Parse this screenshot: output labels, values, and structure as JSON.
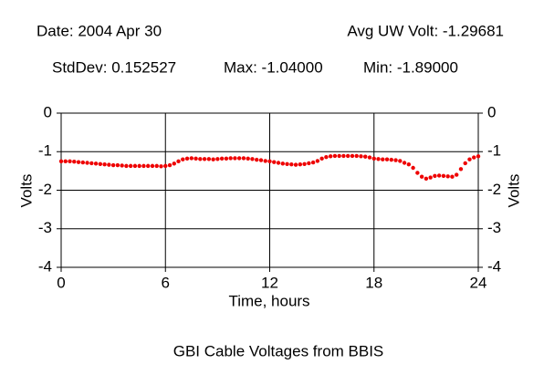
{
  "chart_data": {
    "type": "scatter",
    "title": "GBI Cable Voltages from BBIS",
    "annotations": [
      "Date: 2004 Apr 30",
      "Avg UW Volt: -1.29681",
      "StdDev: 0.152527",
      "Max: -1.04000",
      "Min: -1.89000"
    ],
    "xlabel": "Time, hours",
    "ylabel": "Volts",
    "xlim": [
      0,
      24
    ],
    "xticks": [
      0,
      6,
      12,
      18,
      24
    ],
    "ylim": [
      -4,
      0
    ],
    "yticks": [
      0,
      -1,
      -2,
      -3,
      -4
    ],
    "grid": true,
    "series": [
      {
        "name": "UW Volt",
        "color": "#ee0000",
        "x": [
          0,
          0.25,
          0.5,
          0.75,
          1,
          1.25,
          1.5,
          1.75,
          2,
          2.25,
          2.5,
          2.75,
          3,
          3.25,
          3.5,
          3.75,
          4,
          4.25,
          4.5,
          4.75,
          5,
          5.25,
          5.5,
          5.75,
          6,
          6.25,
          6.5,
          6.75,
          7,
          7.25,
          7.5,
          7.75,
          8,
          8.25,
          8.5,
          8.75,
          9,
          9.25,
          9.5,
          9.75,
          10,
          10.25,
          10.5,
          10.75,
          11,
          11.25,
          11.5,
          11.75,
          12,
          12.25,
          12.5,
          12.75,
          13,
          13.25,
          13.5,
          13.75,
          14,
          14.25,
          14.5,
          14.75,
          15,
          15.25,
          15.5,
          15.75,
          16,
          16.25,
          16.5,
          16.75,
          17,
          17.25,
          17.5,
          17.75,
          18,
          18.25,
          18.5,
          18.75,
          19,
          19.25,
          19.5,
          19.75,
          20,
          20.25,
          20.5,
          20.75,
          21,
          21.25,
          21.5,
          21.75,
          22,
          22.25,
          22.5,
          22.75,
          23,
          23.25,
          23.5,
          23.75,
          24
        ],
        "values": [
          -1.25,
          -1.25,
          -1.25,
          -1.26,
          -1.27,
          -1.28,
          -1.29,
          -1.3,
          -1.31,
          -1.32,
          -1.33,
          -1.34,
          -1.35,
          -1.35,
          -1.36,
          -1.37,
          -1.37,
          -1.37,
          -1.37,
          -1.37,
          -1.37,
          -1.37,
          -1.37,
          -1.38,
          -1.37,
          -1.35,
          -1.31,
          -1.25,
          -1.2,
          -1.18,
          -1.17,
          -1.18,
          -1.19,
          -1.19,
          -1.19,
          -1.2,
          -1.19,
          -1.18,
          -1.18,
          -1.17,
          -1.17,
          -1.17,
          -1.17,
          -1.18,
          -1.19,
          -1.21,
          -1.22,
          -1.24,
          -1.25,
          -1.27,
          -1.29,
          -1.31,
          -1.32,
          -1.33,
          -1.34,
          -1.33,
          -1.32,
          -1.3,
          -1.28,
          -1.24,
          -1.18,
          -1.14,
          -1.12,
          -1.11,
          -1.11,
          -1.11,
          -1.11,
          -1.11,
          -1.11,
          -1.12,
          -1.13,
          -1.15,
          -1.18,
          -1.19,
          -1.2,
          -1.2,
          -1.21,
          -1.22,
          -1.24,
          -1.29,
          -1.33,
          -1.42,
          -1.55,
          -1.65,
          -1.7,
          -1.67,
          -1.63,
          -1.62,
          -1.63,
          -1.64,
          -1.65,
          -1.6,
          -1.45,
          -1.3,
          -1.2,
          -1.15,
          -1.12
        ]
      }
    ]
  }
}
